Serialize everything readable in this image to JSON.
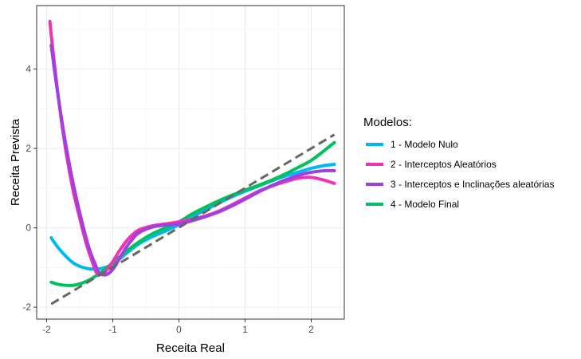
{
  "chart_data": {
    "type": "line",
    "title": "",
    "xlabel": "Receita Real",
    "ylabel": "Receita Prevista",
    "xlim": [
      -2.15,
      2.5
    ],
    "ylim": [
      -2.3,
      5.6
    ],
    "x_ticks": [
      -2,
      -1,
      0,
      1,
      2
    ],
    "y_ticks": [
      -2,
      0,
      2,
      4
    ],
    "grid": true,
    "legend": {
      "title": "Modelos:",
      "placement": "right"
    },
    "reference_line": {
      "style": "dashed",
      "color": "#666666",
      "points": [
        [
          -1.93,
          -1.92
        ],
        [
          2.35,
          2.35
        ]
      ]
    },
    "series": [
      {
        "name": "1 - Modelo Nulo",
        "color": "#00B8F0",
        "points": [
          [
            -1.93,
            -0.25
          ],
          [
            -1.8,
            -0.55
          ],
          [
            -1.6,
            -0.88
          ],
          [
            -1.4,
            -1.02
          ],
          [
            -1.2,
            -1.03
          ],
          [
            -1.0,
            -0.92
          ],
          [
            -0.8,
            -0.65
          ],
          [
            -0.6,
            -0.4
          ],
          [
            -0.4,
            -0.22
          ],
          [
            -0.2,
            -0.08
          ],
          [
            0.0,
            0.08
          ],
          [
            0.2,
            0.28
          ],
          [
            0.4,
            0.45
          ],
          [
            0.6,
            0.62
          ],
          [
            0.8,
            0.78
          ],
          [
            1.0,
            0.92
          ],
          [
            1.2,
            1.05
          ],
          [
            1.4,
            1.18
          ],
          [
            1.6,
            1.3
          ],
          [
            1.8,
            1.4
          ],
          [
            2.0,
            1.5
          ],
          [
            2.2,
            1.57
          ],
          [
            2.35,
            1.6
          ]
        ]
      },
      {
        "name": "2 - Interceptos Aleatórios",
        "color": "#F032B4",
        "points": [
          [
            -1.95,
            5.2
          ],
          [
            -1.9,
            4.4
          ],
          [
            -1.8,
            3.0
          ],
          [
            -1.7,
            1.85
          ],
          [
            -1.6,
            0.95
          ],
          [
            -1.5,
            0.25
          ],
          [
            -1.4,
            -0.4
          ],
          [
            -1.3,
            -0.9
          ],
          [
            -1.25,
            -1.12
          ],
          [
            -1.2,
            -1.18
          ],
          [
            -1.1,
            -1.08
          ],
          [
            -1.0,
            -0.85
          ],
          [
            -0.9,
            -0.58
          ],
          [
            -0.8,
            -0.35
          ],
          [
            -0.7,
            -0.17
          ],
          [
            -0.6,
            -0.05
          ],
          [
            -0.4,
            0.05
          ],
          [
            -0.2,
            0.1
          ],
          [
            0.0,
            0.15
          ],
          [
            0.2,
            0.22
          ],
          [
            0.4,
            0.3
          ],
          [
            0.6,
            0.42
          ],
          [
            0.8,
            0.58
          ],
          [
            1.0,
            0.75
          ],
          [
            1.2,
            0.92
          ],
          [
            1.4,
            1.05
          ],
          [
            1.6,
            1.16
          ],
          [
            1.8,
            1.25
          ],
          [
            2.0,
            1.27
          ],
          [
            2.2,
            1.2
          ],
          [
            2.35,
            1.12
          ]
        ]
      },
      {
        "name": "3 - Interceptos e Inclinações aleatórias",
        "color": "#A040E0",
        "points": [
          [
            -1.93,
            4.6
          ],
          [
            -1.85,
            3.6
          ],
          [
            -1.75,
            2.5
          ],
          [
            -1.65,
            1.55
          ],
          [
            -1.55,
            0.75
          ],
          [
            -1.45,
            0.05
          ],
          [
            -1.35,
            -0.55
          ],
          [
            -1.25,
            -0.98
          ],
          [
            -1.2,
            -1.15
          ],
          [
            -1.1,
            -1.18
          ],
          [
            -1.0,
            -1.05
          ],
          [
            -0.9,
            -0.78
          ],
          [
            -0.8,
            -0.5
          ],
          [
            -0.7,
            -0.28
          ],
          [
            -0.6,
            -0.12
          ],
          [
            -0.4,
            0.02
          ],
          [
            -0.2,
            0.07
          ],
          [
            0.0,
            0.1
          ],
          [
            0.2,
            0.18
          ],
          [
            0.4,
            0.28
          ],
          [
            0.6,
            0.4
          ],
          [
            0.8,
            0.55
          ],
          [
            1.0,
            0.72
          ],
          [
            1.2,
            0.9
          ],
          [
            1.4,
            1.06
          ],
          [
            1.6,
            1.2
          ],
          [
            1.8,
            1.32
          ],
          [
            2.0,
            1.4
          ],
          [
            2.2,
            1.44
          ],
          [
            2.35,
            1.44
          ]
        ]
      },
      {
        "name": "4 - Modelo Final",
        "color": "#00C060",
        "points": [
          [
            -1.93,
            -1.37
          ],
          [
            -1.8,
            -1.43
          ],
          [
            -1.6,
            -1.45
          ],
          [
            -1.4,
            -1.35
          ],
          [
            -1.2,
            -1.15
          ],
          [
            -1.0,
            -0.88
          ],
          [
            -0.8,
            -0.6
          ],
          [
            -0.6,
            -0.35
          ],
          [
            -0.4,
            -0.15
          ],
          [
            -0.2,
            0.0
          ],
          [
            0.0,
            0.15
          ],
          [
            0.2,
            0.35
          ],
          [
            0.4,
            0.52
          ],
          [
            0.6,
            0.68
          ],
          [
            0.8,
            0.82
          ],
          [
            1.0,
            0.95
          ],
          [
            1.2,
            1.07
          ],
          [
            1.4,
            1.2
          ],
          [
            1.6,
            1.35
          ],
          [
            1.8,
            1.52
          ],
          [
            2.0,
            1.7
          ],
          [
            2.2,
            1.95
          ],
          [
            2.35,
            2.15
          ]
        ]
      }
    ]
  }
}
